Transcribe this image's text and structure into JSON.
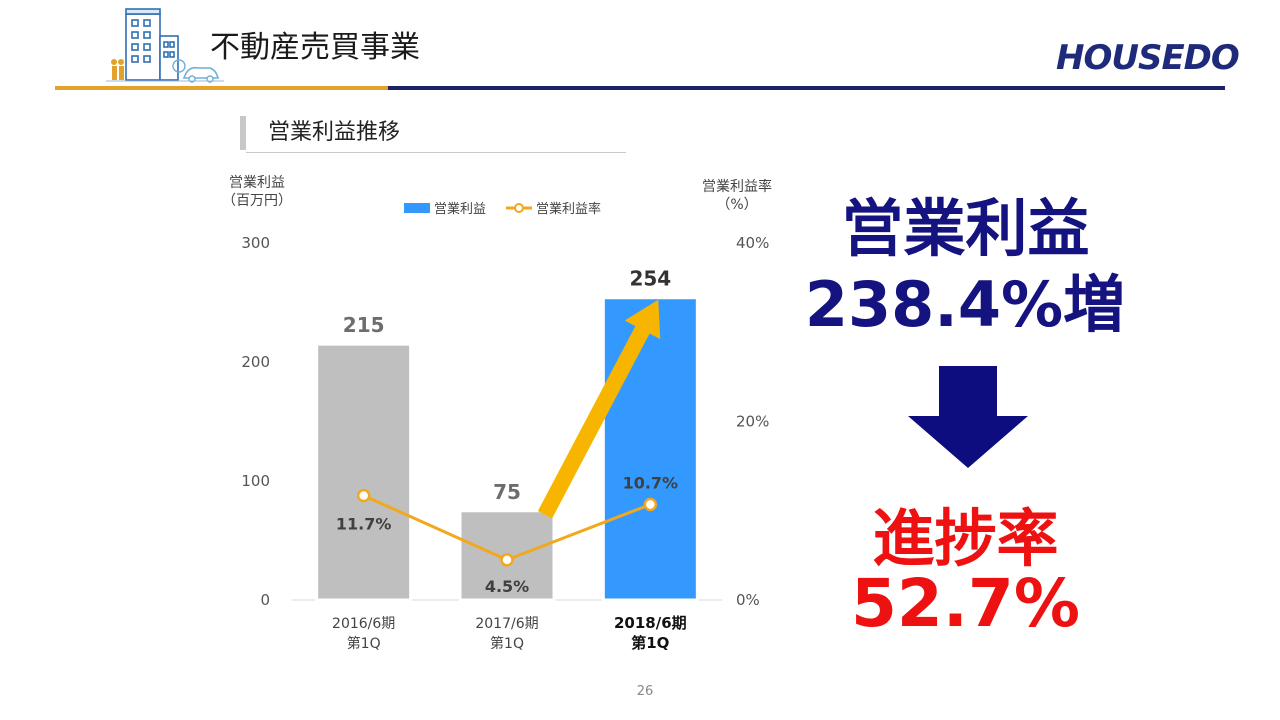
{
  "header": {
    "title": "不動産売買事業",
    "logo_text": "HOUSEDO"
  },
  "section": {
    "title": "営業利益推移"
  },
  "chart_data": {
    "type": "bar",
    "title": "",
    "categories": [
      "2016/6期\n第1Q",
      "2017/6期\n第1Q",
      "2018/6期\n第1Q"
    ],
    "series": [
      {
        "name": "営業利益",
        "type": "bar",
        "axis": "left",
        "values": [
          215,
          75,
          254
        ],
        "colors": [
          "#bfbfbf",
          "#bfbfbf",
          "#3399ff"
        ]
      },
      {
        "name": "営業利益率",
        "type": "line",
        "axis": "right",
        "values": [
          11.7,
          4.5,
          10.7
        ],
        "labels": [
          "11.7%",
          "4.5%",
          "10.7%"
        ],
        "color": "#f2a81d"
      }
    ],
    "y_left": {
      "label": "営業利益\n（百万円）",
      "range": [
        0,
        300
      ],
      "ticks": [
        "0",
        "100",
        "200",
        "300"
      ]
    },
    "y_right": {
      "label": "営業利益率\n（%）",
      "range": [
        0,
        40
      ],
      "ticks": [
        "0%",
        "20%",
        "40%"
      ]
    },
    "bar_labels": [
      "215",
      "75",
      "254"
    ],
    "highlight_category_index": 2,
    "legend_position": "top-center"
  },
  "kpis": {
    "line1": "営業利益",
    "line2": "238.4%増",
    "line3": "進捗率",
    "line4": "52.7%"
  },
  "colors": {
    "navy": "#14137f",
    "red": "#ee1111",
    "highlight_bar": "#3399ff",
    "prior_bar": "#bfbfbf",
    "rate_line": "#f2a81d",
    "arrow_yellow": "#f7b500",
    "down_arrow": "#0d0d80"
  },
  "page_number": "26"
}
